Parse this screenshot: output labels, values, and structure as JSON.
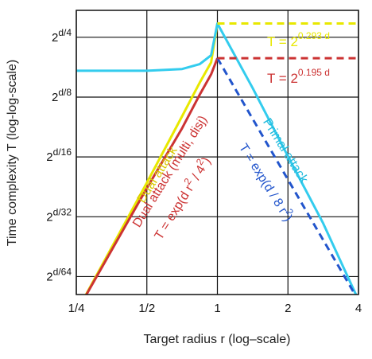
{
  "chart_data": {
    "type": "line",
    "title": "",
    "xlabel": "Target radius r (log–scale)",
    "ylabel": "Time complexity T (log-log-scale)",
    "x_scale": "log2",
    "y_scale": "log-log",
    "xlim": [
      0.25,
      4
    ],
    "ylim": [
      -6.3,
      -1.55
    ],
    "x_ticks": [
      {
        "value": 0.25,
        "label": "1/4"
      },
      {
        "value": 0.5,
        "label": "1/2"
      },
      {
        "value": 1,
        "label": "1"
      },
      {
        "value": 2,
        "label": "2"
      },
      {
        "value": 4,
        "label": "4"
      }
    ],
    "y_ticks": [
      {
        "value": -2,
        "label": "2^{d/4}",
        "base": "2",
        "exp": "d/4"
      },
      {
        "value": -3,
        "label": "2^{d/8}",
        "base": "2",
        "exp": "d/8"
      },
      {
        "value": -4,
        "label": "2^{d/16}",
        "base": "2",
        "exp": "d/16"
      },
      {
        "value": -5,
        "label": "2^{d/32}",
        "base": "2",
        "exp": "d/32"
      },
      {
        "value": -6,
        "label": "2^{d/64}",
        "base": "2",
        "exp": "d/64"
      }
    ],
    "grid": true,
    "legend": "none",
    "series": [
      {
        "name": "Dual attack",
        "color": "#e8e800",
        "style": "solid",
        "x": [
          0.25,
          0.5,
          0.707,
          0.84,
          0.94,
          1.0
        ],
        "y": [
          -6.6,
          -4.43,
          -3.32,
          -2.76,
          -2.42,
          -1.77
        ]
      },
      {
        "name": "Dual attack (multi, disj)",
        "color": "#cc3333",
        "style": "solid",
        "x": [
          0.25,
          0.5,
          0.707,
          0.84,
          0.94,
          1.0
        ],
        "y": [
          -6.6,
          -4.52,
          -3.52,
          -2.96,
          -2.62,
          -2.35
        ]
      },
      {
        "name": "Primal attack",
        "color": "#33ccee",
        "style": "solid",
        "x": [
          0.25,
          0.5,
          0.707,
          0.84,
          0.94,
          1.0,
          1.414,
          2.0,
          2.828,
          3.5,
          3.9
        ],
        "y": [
          -2.56,
          -2.56,
          -2.53,
          -2.45,
          -2.3,
          -1.77,
          -2.85,
          -3.99,
          -5.11,
          -5.9,
          -6.3
        ]
      },
      {
        "name": "T = exp(d / 8 r^2)",
        "color": "#2255cc",
        "style": "dashed",
        "x": [
          1.0,
          2.0,
          4.0
        ],
        "y": [
          -2.35,
          -4.38,
          -6.4
        ]
      },
      {
        "name": "T = 2^{0.293 d}",
        "color": "#e8e800",
        "style": "dashed",
        "x": [
          1.0,
          4.0
        ],
        "y": [
          -1.77,
          -1.77
        ]
      },
      {
        "name": "T = 2^{0.195 d}",
        "color": "#cc3333",
        "style": "dashed",
        "x": [
          1.0,
          4.0
        ],
        "y": [
          -2.35,
          -2.35
        ]
      }
    ],
    "annotations": {
      "dual": "Dual attack",
      "dual_multi": "Dual attack (multi, disj)",
      "dual_eq": {
        "text": "T = exp(d r",
        "sup1": "2",
        "mid": " / ",
        "sup_den": "2",
        "end": ")",
        "den": "4"
      },
      "primal": "Primal attack",
      "primal_eq": {
        "text": "T = exp(d / 8 r",
        "sup": "2",
        "end": ")"
      },
      "top_eq": {
        "prefix": "T = 2",
        "exp": "0.293 d"
      },
      "mid_eq": {
        "prefix": "T = 2",
        "exp": "0.195 d"
      }
    }
  }
}
